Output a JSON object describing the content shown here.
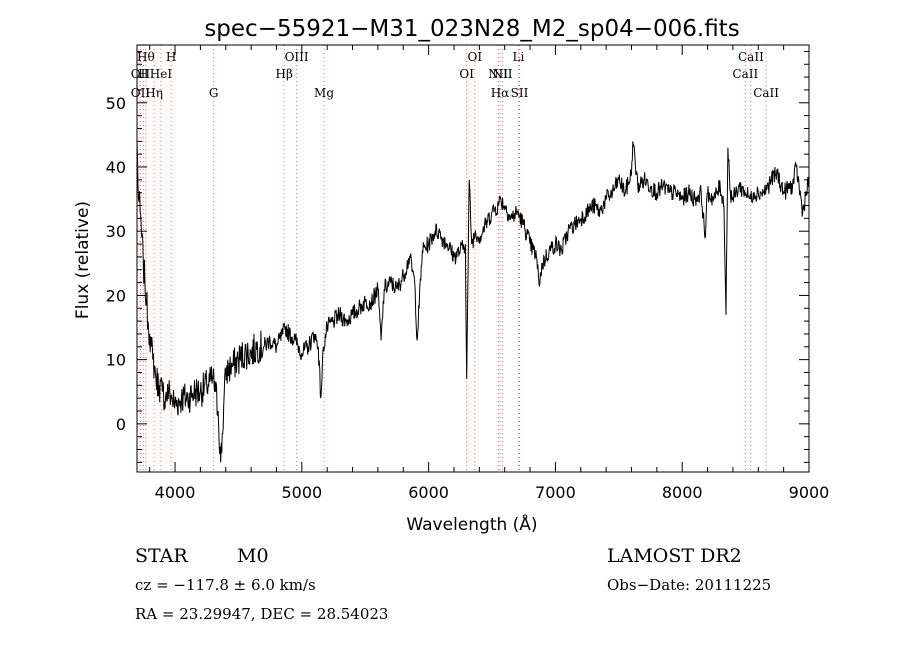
{
  "chart_data": {
    "type": "line",
    "title": "spec−55921−M31_023N28_M2_sp04−006.fits",
    "xlabel": "Wavelength (Å)",
    "ylabel": "Flux (relative)",
    "xlim": [
      3700,
      9000
    ],
    "ylim": [
      -7.5,
      59
    ],
    "xticks": [
      4000,
      5000,
      6000,
      7000,
      8000,
      9000
    ],
    "xtick_labels": [
      "4000",
      "5000",
      "6000",
      "7000",
      "8000",
      "9000"
    ],
    "yticks": [
      0,
      10,
      20,
      30,
      40,
      50
    ],
    "ytick_labels": [
      "0",
      "10",
      "20",
      "30",
      "40",
      "50"
    ],
    "grid": false,
    "line_color": "#000000",
    "marker_color": "#e07070",
    "series": [
      {
        "x": [
          3700,
          3712,
          3725,
          3738,
          3750,
          3762,
          3775,
          3787,
          3800,
          3812,
          3825,
          3837,
          3850,
          3875,
          3900,
          3925,
          3950,
          3975,
          4000,
          4050,
          4100,
          4150,
          4200,
          4250,
          4300,
          4320,
          4340,
          4360,
          4400,
          4450,
          4500,
          4550,
          4600,
          4650,
          4700,
          4750,
          4800,
          4850,
          4870,
          4900,
          4950,
          5000,
          5050,
          5100,
          5130,
          5150,
          5170,
          5200,
          5250,
          5300,
          5350,
          5400,
          5450,
          5500,
          5550,
          5600,
          5625,
          5650,
          5700,
          5750,
          5800,
          5850,
          5890,
          5910,
          5950,
          6000,
          6050,
          6080,
          6100,
          6150,
          6200,
          6250,
          6290,
          6300,
          6320,
          6340,
          6370,
          6400,
          6450,
          6500,
          6550,
          6563,
          6600,
          6650,
          6700,
          6750,
          6800,
          6850,
          6870,
          6900,
          6950,
          7000,
          7050,
          7100,
          7150,
          7200,
          7250,
          7300,
          7350,
          7400,
          7450,
          7500,
          7550,
          7600,
          7610,
          7650,
          7700,
          7750,
          7800,
          7850,
          7900,
          7950,
          8000,
          8050,
          8100,
          8150,
          8180,
          8200,
          8250,
          8300,
          8330,
          8345,
          8360,
          8380,
          8400,
          8450,
          8500,
          8540,
          8560,
          8600,
          8640,
          8680,
          8700,
          8750,
          8800,
          8850,
          8870,
          8900,
          8950,
          9000
        ],
        "y": [
          44,
          35,
          33,
          29,
          25,
          22,
          19,
          16,
          14,
          12,
          10,
          9,
          7,
          6,
          5,
          4,
          5,
          4,
          3,
          4,
          4,
          5,
          5,
          6,
          7,
          5,
          2,
          -6,
          8,
          9,
          10,
          11,
          11,
          12,
          12,
          13,
          12,
          14,
          15,
          14,
          13,
          11,
          12,
          14,
          12,
          4,
          12,
          15,
          16,
          17,
          16,
          17,
          18,
          19,
          19,
          21,
          13,
          21,
          22,
          21,
          23,
          26,
          22,
          13,
          27,
          28,
          30,
          30,
          29,
          28,
          26,
          27,
          28,
          7,
          38,
          28,
          30,
          29,
          31,
          33,
          34,
          35,
          34,
          32,
          33,
          31,
          28,
          26,
          22,
          25,
          27,
          28,
          27,
          30,
          31,
          32,
          33,
          34,
          33,
          35,
          36,
          38,
          36,
          39,
          44,
          37,
          38,
          37,
          36,
          37,
          36,
          36,
          35,
          36,
          35,
          36,
          29,
          36,
          35,
          37,
          34,
          17,
          43,
          36,
          35,
          37,
          36,
          35,
          36,
          36,
          36,
          37,
          38,
          39,
          36,
          37,
          37,
          40,
          33,
          38
        ]
      }
    ],
    "line_markers": [
      {
        "wl": 3727,
        "label": "OII",
        "row": 2
      },
      {
        "wl": 3727,
        "label": "OII",
        "row": 3
      },
      {
        "wl": 3750,
        "label": "H",
        "row": 2
      },
      {
        "wl": 3770,
        "label": "Hθ",
        "row": 1
      },
      {
        "wl": 3835,
        "label": "Hη",
        "row": 3
      },
      {
        "wl": 3889,
        "label": "HeI",
        "row": 2
      },
      {
        "wl": 3969,
        "label": "H",
        "row": 1
      },
      {
        "wl": 4305,
        "label": "G",
        "row": 3
      },
      {
        "wl": 4861,
        "label": "Hβ",
        "row": 2
      },
      {
        "wl": 4959,
        "label": "OIII",
        "row": 1
      },
      {
        "wl": 5175,
        "label": "Mg",
        "row": 3
      },
      {
        "wl": 6300,
        "label": "OI",
        "row": 2
      },
      {
        "wl": 6364,
        "label": "OI",
        "row": 1
      },
      {
        "wl": 6548,
        "label": "NII",
        "row": 2
      },
      {
        "wl": 6563,
        "label": "Hα",
        "row": 3
      },
      {
        "wl": 6583,
        "label": "NII",
        "row": 2
      },
      {
        "wl": 6708,
        "label": "Li",
        "row": 1
      },
      {
        "wl": 6717,
        "label": "SII",
        "row": 3
      },
      {
        "wl": 8498,
        "label": "CaII",
        "row": 2
      },
      {
        "wl": 8542,
        "label": "CaII",
        "row": 1
      },
      {
        "wl": 8662,
        "label": "CaII",
        "row": 3
      }
    ]
  },
  "info": {
    "class_label": "STAR",
    "subclass_label": "M0",
    "survey": "LAMOST DR2",
    "cz": "cz = −117.8 ± 6.0 km/s",
    "obs_date": "Obs−Date: 20111225",
    "radec": "RA =  23.29947, DEC =  28.54023"
  }
}
